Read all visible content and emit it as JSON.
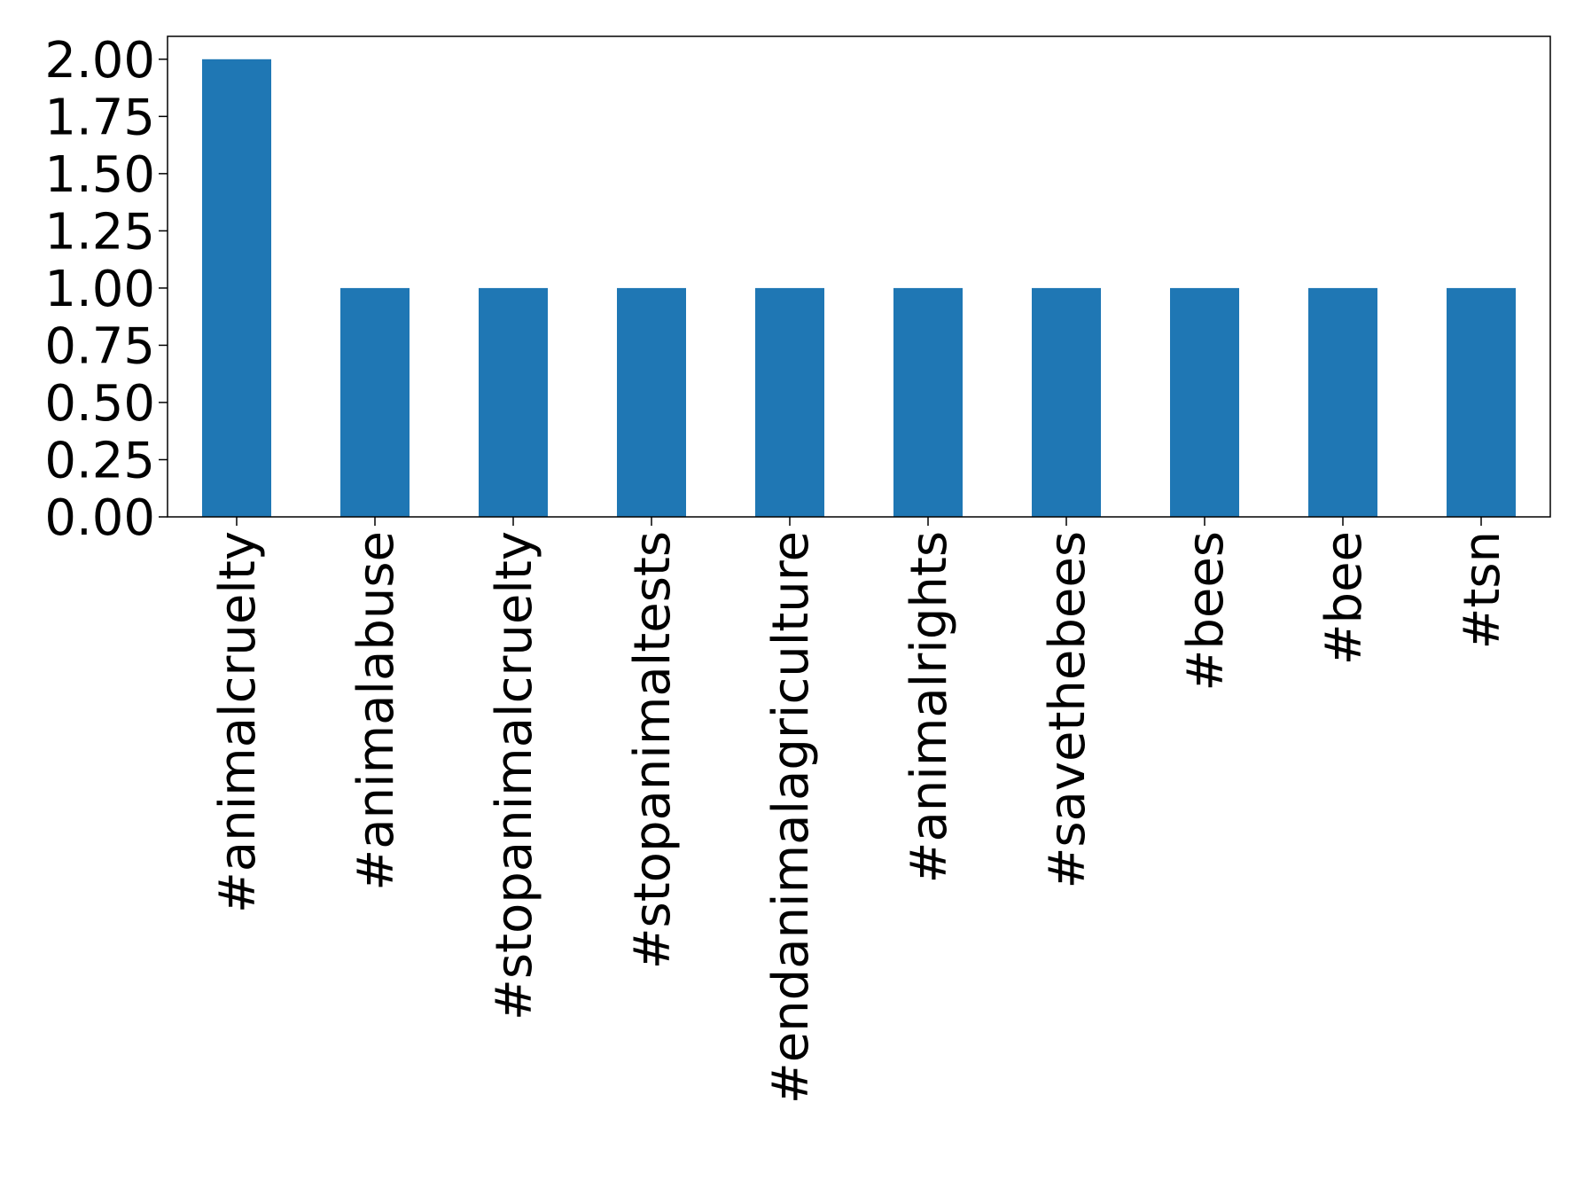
{
  "chart_data": {
    "type": "bar",
    "categories": [
      "#animalcruelty",
      "#animalabuse",
      "#stopanimalcruelty",
      "#stopanimaltests",
      "#endanimalagriculture",
      "#animalrights",
      "#savethebees",
      "#bees",
      "#bee",
      "#tsn"
    ],
    "values": [
      2,
      1,
      1,
      1,
      1,
      1,
      1,
      1,
      1,
      1
    ],
    "color": "#1f77b4",
    "ylim": [
      0,
      2.1
    ],
    "yticks": [
      {
        "value": 0,
        "label": "0.00"
      },
      {
        "value": 0.25,
        "label": "0.25"
      },
      {
        "value": 0.5,
        "label": "0.50"
      },
      {
        "value": 0.75,
        "label": "0.75"
      },
      {
        "value": 1,
        "label": "1.00"
      },
      {
        "value": 1.25,
        "label": "1.25"
      },
      {
        "value": 1.5,
        "label": "1.50"
      },
      {
        "value": 1.75,
        "label": "1.75"
      },
      {
        "value": 2,
        "label": "2.00"
      }
    ],
    "grid": false
  }
}
